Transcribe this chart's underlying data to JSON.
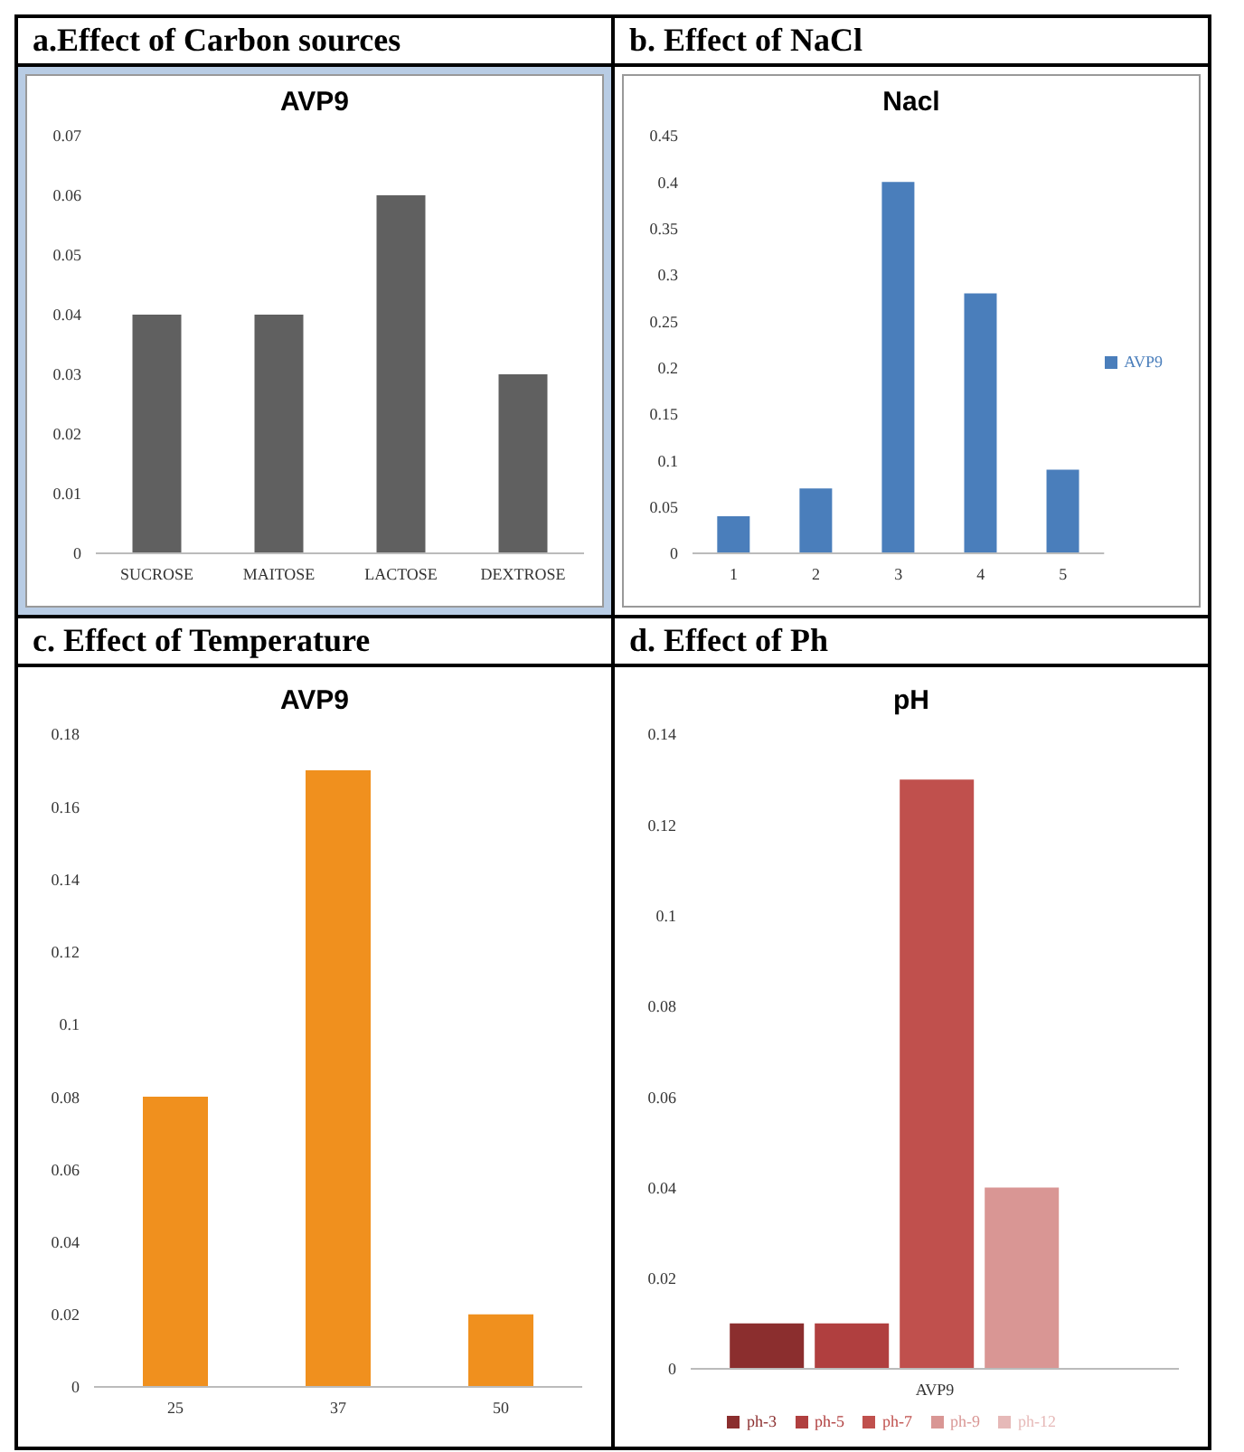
{
  "chart_data": [
    {
      "type": "bar",
      "title": "a.Effect of Carbon sources",
      "subtitle": "AVP9",
      "categories": [
        "SUCROSE",
        "MAITOSE",
        "LACTOSE",
        "DEXTROSE"
      ],
      "values": [
        0.04,
        0.04,
        0.06,
        0.03
      ],
      "color": "#606060",
      "ylim": [
        0,
        0.07
      ],
      "yticks": [
        0,
        0.01,
        0.02,
        0.03,
        0.04,
        0.05,
        0.06,
        0.07
      ],
      "legend": false
    },
    {
      "type": "bar",
      "title": "b. Effect of NaCl",
      "subtitle": "Nacl",
      "categories": [
        "1",
        "2",
        "3",
        "4",
        "5"
      ],
      "series": [
        {
          "name": "AVP9",
          "color": "#4a7ebb",
          "values": [
            0.04,
            0.07,
            0.4,
            0.28,
            0.09
          ]
        }
      ],
      "ylim": [
        0,
        0.45
      ],
      "yticks": [
        0,
        0.05,
        0.1,
        0.15,
        0.2,
        0.25,
        0.3,
        0.35,
        0.4,
        0.45
      ],
      "legend": "right"
    },
    {
      "type": "bar",
      "title": "c. Effect of Temperature",
      "subtitle": "AVP9",
      "categories": [
        "25",
        "37",
        "50"
      ],
      "values": [
        0.08,
        0.17,
        0.02
      ],
      "color": "#f0901e",
      "ylim": [
        0,
        0.18
      ],
      "yticks": [
        0,
        0.02,
        0.04,
        0.06,
        0.08,
        0.1,
        0.12,
        0.14,
        0.16,
        0.18
      ],
      "legend": false
    },
    {
      "type": "bar",
      "title": "d. Effect of Ph",
      "subtitle": "pH",
      "categories": [
        "AVP9"
      ],
      "series": [
        {
          "name": "ph-3",
          "color": "#8b2e2e",
          "values": [
            0.01
          ]
        },
        {
          "name": "ph-5",
          "color": "#b03f3f",
          "values": [
            0.01
          ]
        },
        {
          "name": "ph-7",
          "color": "#c0504d",
          "values": [
            0.13
          ]
        },
        {
          "name": "ph-9",
          "color": "#d99694",
          "values": [
            0.04
          ]
        },
        {
          "name": "ph-12",
          "color": "#e6b9b8",
          "values": [
            null
          ]
        }
      ],
      "ylim": [
        0,
        0.14
      ],
      "yticks": [
        0,
        0.02,
        0.04,
        0.06,
        0.08,
        0.1,
        0.12,
        0.14
      ],
      "legend": "bottom"
    }
  ]
}
